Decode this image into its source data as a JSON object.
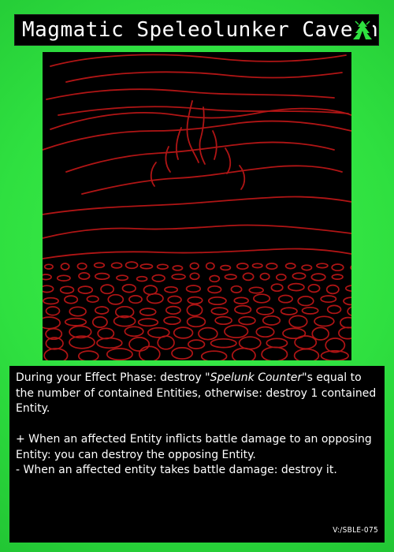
{
  "card": {
    "title": "Magmatic Speleolunker Cavern",
    "attribute_icon": "cave-mountain-icon",
    "effect": {
      "line1_prefix": "During your Effect Phase: destroy \"",
      "line1_italic": "Spelunk Counter",
      "line1_suffix": "\"s equal to the number of contained Entities, otherwise: destroy 1 contained Entity.",
      "plus_effect": "+ When an affected Entity inflicts battle damage to an opposing Entity: you can destroy the opposing Entity.",
      "minus_effect": "- When an affected entity takes battle damage: destroy it."
    },
    "code": "V:/SBLE-075"
  },
  "colors": {
    "frame_green": "#2fe040",
    "art_line_red": "#b01515",
    "text": "#ffffff",
    "panel": "#000000"
  }
}
